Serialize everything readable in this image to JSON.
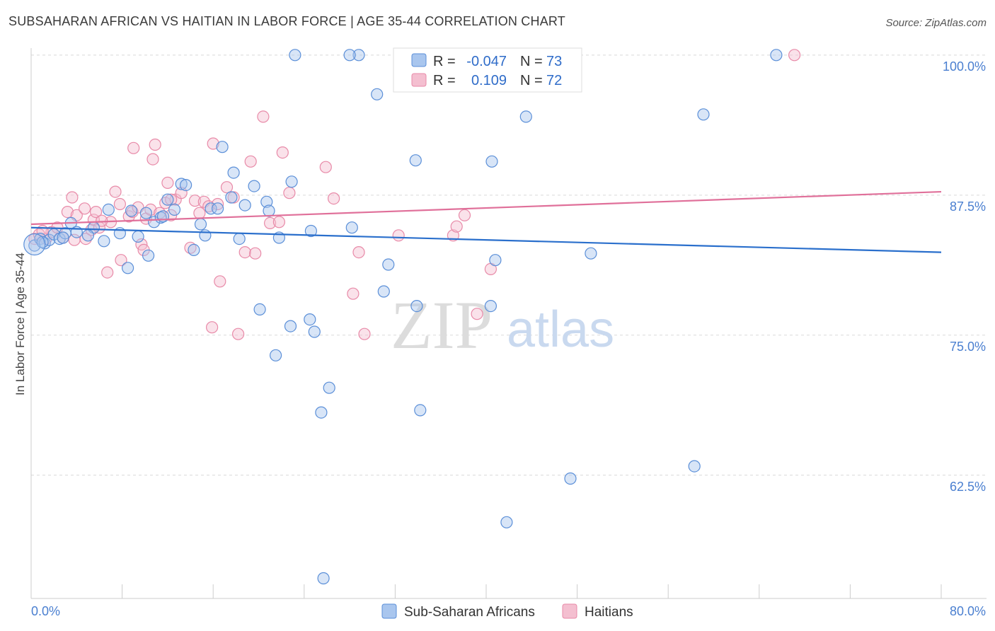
{
  "title": "SUBSAHARAN AFRICAN VS HAITIAN IN LABOR FORCE | AGE 35-44 CORRELATION CHART",
  "source": "Source: ZipAtlas.com",
  "watermark": {
    "left": "ZIP",
    "right": "atlas"
  },
  "colors": {
    "blue": "#5b8fd8",
    "blue_fill": "#a9c6ee",
    "blue_line": "#2a6fcc",
    "pink": "#e88aa8",
    "pink_fill": "#f4bfd0",
    "pink_line": "#e0709a",
    "tick_text": "#4a7fd0",
    "grid": "#d9d9d9"
  },
  "legend": {
    "rows": [
      {
        "r_label": "R =",
        "r_value": "-0.047",
        "n_label": "N =",
        "n_value": "73"
      },
      {
        "r_label": "R =",
        "r_value": "0.109",
        "n_label": "N =",
        "n_value": "72"
      }
    ]
  },
  "bottom_legend": [
    "Sub-Saharan Africans",
    "Haitians"
  ],
  "chart_data": {
    "type": "scatter",
    "title": "SUBSAHARAN AFRICAN VS HAITIAN IN LABOR FORCE | AGE 35-44 CORRELATION CHART",
    "xlabel": "",
    "ylabel": "In Labor Force | Age 35-44",
    "xlim": [
      0,
      80
    ],
    "ylim": [
      51.5,
      101
    ],
    "x_tick_labels": [
      "0.0%",
      "80.0%"
    ],
    "y_ticks": [
      62.5,
      75.0,
      87.5,
      100.0
    ],
    "y_tick_labels": [
      "62.5%",
      "75.0%",
      "87.5%",
      "100.0%"
    ],
    "grid": true,
    "legend_position": "top-center",
    "series": [
      {
        "name": "Sub-Saharan Africans",
        "color": "#5b8fd8",
        "trend": {
          "x": [
            0,
            80
          ],
          "y": [
            84.6,
            82.4
          ]
        },
        "points": [
          [
            0.3,
            83.0
          ],
          [
            0.8,
            83.6
          ],
          [
            1.2,
            83.2
          ],
          [
            1.6,
            83.5
          ],
          [
            2.0,
            84.0
          ],
          [
            2.5,
            83.6
          ],
          [
            3.0,
            84.1
          ],
          [
            3.5,
            85.0
          ],
          [
            4.0,
            84.2
          ],
          [
            5.5,
            84.6
          ],
          [
            6.4,
            83.4
          ],
          [
            6.8,
            86.2
          ],
          [
            7.8,
            84.1
          ],
          [
            8.5,
            81.0
          ],
          [
            8.8,
            86.1
          ],
          [
            9.4,
            83.8
          ],
          [
            10.1,
            85.9
          ],
          [
            10.3,
            82.1
          ],
          [
            10.8,
            85.1
          ],
          [
            11.4,
            85.5
          ],
          [
            12.0,
            87.1
          ],
          [
            12.6,
            86.2
          ],
          [
            13.2,
            88.5
          ],
          [
            13.6,
            88.4
          ],
          [
            14.3,
            82.6
          ],
          [
            14.9,
            84.9
          ],
          [
            15.3,
            83.9
          ],
          [
            15.8,
            86.3
          ],
          [
            16.4,
            86.3
          ],
          [
            16.8,
            91.8
          ],
          [
            17.6,
            87.3
          ],
          [
            17.8,
            89.5
          ],
          [
            18.3,
            83.6
          ],
          [
            18.8,
            86.6
          ],
          [
            19.6,
            88.3
          ],
          [
            20.7,
            86.9
          ],
          [
            20.9,
            86.1
          ],
          [
            20.1,
            77.3
          ],
          [
            21.8,
            83.7
          ],
          [
            22.8,
            75.8
          ],
          [
            21.5,
            73.2
          ],
          [
            22.9,
            88.7
          ],
          [
            24.6,
            84.3
          ],
          [
            24.5,
            76.4
          ],
          [
            24.9,
            75.3
          ],
          [
            25.5,
            68.1
          ],
          [
            26.2,
            70.3
          ],
          [
            28.2,
            84.6
          ],
          [
            28.8,
            100.0
          ],
          [
            30.4,
            96.5
          ],
          [
            31.0,
            78.9
          ],
          [
            31.4,
            81.3
          ],
          [
            33.5,
            100.0
          ],
          [
            33.8,
            90.6
          ],
          [
            33.9,
            77.6
          ],
          [
            34.2,
            68.3
          ],
          [
            40.5,
            90.5
          ],
          [
            40.4,
            77.6
          ],
          [
            40.8,
            81.7
          ],
          [
            41.8,
            58.3
          ],
          [
            43.5,
            94.5
          ],
          [
            47.4,
            62.2
          ],
          [
            49.2,
            82.3
          ],
          [
            58.3,
            63.3
          ],
          [
            59.1,
            94.7
          ],
          [
            65.5,
            100.0
          ],
          [
            23.2,
            100.0
          ],
          [
            28.0,
            100.0
          ],
          [
            25.7,
            53.3
          ],
          [
            1.0,
            83.3
          ],
          [
            2.8,
            83.7
          ],
          [
            5.0,
            83.9
          ],
          [
            11.6,
            85.6
          ]
        ]
      },
      {
        "name": "Haitians",
        "color": "#e88aa8",
        "trend": {
          "x": [
            0,
            80
          ],
          "y": [
            84.9,
            87.8
          ]
        },
        "points": [
          [
            0.3,
            83.6
          ],
          [
            0.7,
            84.0
          ],
          [
            1.3,
            83.6
          ],
          [
            1.8,
            84.2
          ],
          [
            2.3,
            84.6
          ],
          [
            2.8,
            83.7
          ],
          [
            3.2,
            86.0
          ],
          [
            3.6,
            87.3
          ],
          [
            4.0,
            85.7
          ],
          [
            4.7,
            86.3
          ],
          [
            4.8,
            83.6
          ],
          [
            5.3,
            84.4
          ],
          [
            5.5,
            85.3
          ],
          [
            5.7,
            86.0
          ],
          [
            6.0,
            84.6
          ],
          [
            6.7,
            80.6
          ],
          [
            7.0,
            85.1
          ],
          [
            7.4,
            87.8
          ],
          [
            7.8,
            86.7
          ],
          [
            7.9,
            81.7
          ],
          [
            8.6,
            85.6
          ],
          [
            8.9,
            86.0
          ],
          [
            9.0,
            91.7
          ],
          [
            9.7,
            83.1
          ],
          [
            9.9,
            82.6
          ],
          [
            10.1,
            85.4
          ],
          [
            10.5,
            86.2
          ],
          [
            10.7,
            90.7
          ],
          [
            10.9,
            92.0
          ],
          [
            11.3,
            85.9
          ],
          [
            11.8,
            86.8
          ],
          [
            12.0,
            88.6
          ],
          [
            12.3,
            85.7
          ],
          [
            12.7,
            87.1
          ],
          [
            13.2,
            87.7
          ],
          [
            14.0,
            82.8
          ],
          [
            14.4,
            87.0
          ],
          [
            14.8,
            85.9
          ],
          [
            15.2,
            86.9
          ],
          [
            15.6,
            86.5
          ],
          [
            15.9,
            75.7
          ],
          [
            16.0,
            92.1
          ],
          [
            16.4,
            86.7
          ],
          [
            16.6,
            79.8
          ],
          [
            17.2,
            88.2
          ],
          [
            17.8,
            87.3
          ],
          [
            18.2,
            75.1
          ],
          [
            18.8,
            82.4
          ],
          [
            19.3,
            90.5
          ],
          [
            19.7,
            82.3
          ],
          [
            20.4,
            94.5
          ],
          [
            21.0,
            85.0
          ],
          [
            21.8,
            85.1
          ],
          [
            22.1,
            91.3
          ],
          [
            22.7,
            87.7
          ],
          [
            25.9,
            90.0
          ],
          [
            26.6,
            87.2
          ],
          [
            28.3,
            78.7
          ],
          [
            28.8,
            82.4
          ],
          [
            29.3,
            75.1
          ],
          [
            32.3,
            83.9
          ],
          [
            37.1,
            83.9
          ],
          [
            37.4,
            84.7
          ],
          [
            38.1,
            85.7
          ],
          [
            39.2,
            76.9
          ],
          [
            40.4,
            80.9
          ],
          [
            67.1,
            100.0
          ],
          [
            3.8,
            83.5
          ],
          [
            1.0,
            84.3
          ],
          [
            6.2,
            85.2
          ],
          [
            12.3,
            87.1
          ],
          [
            9.4,
            86.4
          ]
        ]
      }
    ]
  }
}
